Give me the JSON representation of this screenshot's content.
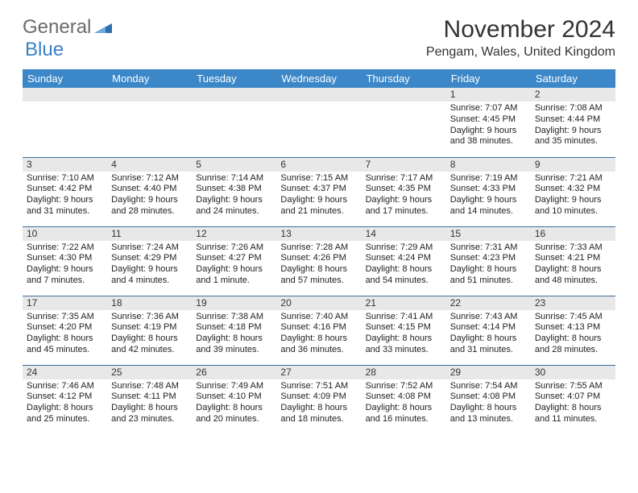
{
  "logo": {
    "text1": "General",
    "text2": "Blue"
  },
  "title": "November 2024",
  "location": "Pengam, Wales, United Kingdom",
  "colors": {
    "header_bg": "#3b87c8",
    "header_text": "#ffffff",
    "daynum_bg": "#e8e8e8",
    "border": "#3b6fa0",
    "logo_blue": "#3b7fc4",
    "logo_gray": "#6b6b6b"
  },
  "weekdays": [
    "Sunday",
    "Monday",
    "Tuesday",
    "Wednesday",
    "Thursday",
    "Friday",
    "Saturday"
  ],
  "weeks": [
    [
      {
        "n": "",
        "lines": []
      },
      {
        "n": "",
        "lines": []
      },
      {
        "n": "",
        "lines": []
      },
      {
        "n": "",
        "lines": []
      },
      {
        "n": "",
        "lines": []
      },
      {
        "n": "1",
        "lines": [
          "Sunrise: 7:07 AM",
          "Sunset: 4:45 PM",
          "Daylight: 9 hours",
          "and 38 minutes."
        ]
      },
      {
        "n": "2",
        "lines": [
          "Sunrise: 7:08 AM",
          "Sunset: 4:44 PM",
          "Daylight: 9 hours",
          "and 35 minutes."
        ]
      }
    ],
    [
      {
        "n": "3",
        "lines": [
          "Sunrise: 7:10 AM",
          "Sunset: 4:42 PM",
          "Daylight: 9 hours",
          "and 31 minutes."
        ]
      },
      {
        "n": "4",
        "lines": [
          "Sunrise: 7:12 AM",
          "Sunset: 4:40 PM",
          "Daylight: 9 hours",
          "and 28 minutes."
        ]
      },
      {
        "n": "5",
        "lines": [
          "Sunrise: 7:14 AM",
          "Sunset: 4:38 PM",
          "Daylight: 9 hours",
          "and 24 minutes."
        ]
      },
      {
        "n": "6",
        "lines": [
          "Sunrise: 7:15 AM",
          "Sunset: 4:37 PM",
          "Daylight: 9 hours",
          "and 21 minutes."
        ]
      },
      {
        "n": "7",
        "lines": [
          "Sunrise: 7:17 AM",
          "Sunset: 4:35 PM",
          "Daylight: 9 hours",
          "and 17 minutes."
        ]
      },
      {
        "n": "8",
        "lines": [
          "Sunrise: 7:19 AM",
          "Sunset: 4:33 PM",
          "Daylight: 9 hours",
          "and 14 minutes."
        ]
      },
      {
        "n": "9",
        "lines": [
          "Sunrise: 7:21 AM",
          "Sunset: 4:32 PM",
          "Daylight: 9 hours",
          "and 10 minutes."
        ]
      }
    ],
    [
      {
        "n": "10",
        "lines": [
          "Sunrise: 7:22 AM",
          "Sunset: 4:30 PM",
          "Daylight: 9 hours",
          "and 7 minutes."
        ]
      },
      {
        "n": "11",
        "lines": [
          "Sunrise: 7:24 AM",
          "Sunset: 4:29 PM",
          "Daylight: 9 hours",
          "and 4 minutes."
        ]
      },
      {
        "n": "12",
        "lines": [
          "Sunrise: 7:26 AM",
          "Sunset: 4:27 PM",
          "Daylight: 9 hours",
          "and 1 minute."
        ]
      },
      {
        "n": "13",
        "lines": [
          "Sunrise: 7:28 AM",
          "Sunset: 4:26 PM",
          "Daylight: 8 hours",
          "and 57 minutes."
        ]
      },
      {
        "n": "14",
        "lines": [
          "Sunrise: 7:29 AM",
          "Sunset: 4:24 PM",
          "Daylight: 8 hours",
          "and 54 minutes."
        ]
      },
      {
        "n": "15",
        "lines": [
          "Sunrise: 7:31 AM",
          "Sunset: 4:23 PM",
          "Daylight: 8 hours",
          "and 51 minutes."
        ]
      },
      {
        "n": "16",
        "lines": [
          "Sunrise: 7:33 AM",
          "Sunset: 4:21 PM",
          "Daylight: 8 hours",
          "and 48 minutes."
        ]
      }
    ],
    [
      {
        "n": "17",
        "lines": [
          "Sunrise: 7:35 AM",
          "Sunset: 4:20 PM",
          "Daylight: 8 hours",
          "and 45 minutes."
        ]
      },
      {
        "n": "18",
        "lines": [
          "Sunrise: 7:36 AM",
          "Sunset: 4:19 PM",
          "Daylight: 8 hours",
          "and 42 minutes."
        ]
      },
      {
        "n": "19",
        "lines": [
          "Sunrise: 7:38 AM",
          "Sunset: 4:18 PM",
          "Daylight: 8 hours",
          "and 39 minutes."
        ]
      },
      {
        "n": "20",
        "lines": [
          "Sunrise: 7:40 AM",
          "Sunset: 4:16 PM",
          "Daylight: 8 hours",
          "and 36 minutes."
        ]
      },
      {
        "n": "21",
        "lines": [
          "Sunrise: 7:41 AM",
          "Sunset: 4:15 PM",
          "Daylight: 8 hours",
          "and 33 minutes."
        ]
      },
      {
        "n": "22",
        "lines": [
          "Sunrise: 7:43 AM",
          "Sunset: 4:14 PM",
          "Daylight: 8 hours",
          "and 31 minutes."
        ]
      },
      {
        "n": "23",
        "lines": [
          "Sunrise: 7:45 AM",
          "Sunset: 4:13 PM",
          "Daylight: 8 hours",
          "and 28 minutes."
        ]
      }
    ],
    [
      {
        "n": "24",
        "lines": [
          "Sunrise: 7:46 AM",
          "Sunset: 4:12 PM",
          "Daylight: 8 hours",
          "and 25 minutes."
        ]
      },
      {
        "n": "25",
        "lines": [
          "Sunrise: 7:48 AM",
          "Sunset: 4:11 PM",
          "Daylight: 8 hours",
          "and 23 minutes."
        ]
      },
      {
        "n": "26",
        "lines": [
          "Sunrise: 7:49 AM",
          "Sunset: 4:10 PM",
          "Daylight: 8 hours",
          "and 20 minutes."
        ]
      },
      {
        "n": "27",
        "lines": [
          "Sunrise: 7:51 AM",
          "Sunset: 4:09 PM",
          "Daylight: 8 hours",
          "and 18 minutes."
        ]
      },
      {
        "n": "28",
        "lines": [
          "Sunrise: 7:52 AM",
          "Sunset: 4:08 PM",
          "Daylight: 8 hours",
          "and 16 minutes."
        ]
      },
      {
        "n": "29",
        "lines": [
          "Sunrise: 7:54 AM",
          "Sunset: 4:08 PM",
          "Daylight: 8 hours",
          "and 13 minutes."
        ]
      },
      {
        "n": "30",
        "lines": [
          "Sunrise: 7:55 AM",
          "Sunset: 4:07 PM",
          "Daylight: 8 hours",
          "and 11 minutes."
        ]
      }
    ]
  ]
}
